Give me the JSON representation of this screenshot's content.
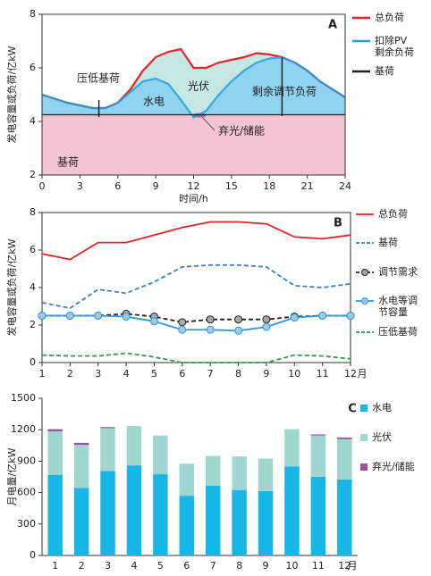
{
  "chart_data": [
    {
      "type": "area",
      "label": "A",
      "x_label": "时间/h",
      "y_label": "发电容量或负荷/亿kW",
      "x": [
        0,
        1,
        2,
        3,
        4,
        5,
        6,
        7,
        8,
        9,
        10,
        11,
        12,
        13,
        14,
        15,
        16,
        17,
        18,
        19,
        20,
        21,
        22,
        23,
        24
      ],
      "series": [
        {
          "name": "总负荷",
          "color": "#e2242a",
          "values": [
            5.0,
            4.85,
            4.7,
            4.6,
            4.5,
            4.5,
            4.7,
            5.2,
            5.9,
            6.4,
            6.6,
            6.7,
            6.0,
            6.0,
            6.2,
            6.3,
            6.4,
            6.55,
            6.5,
            6.4,
            6.2,
            5.9,
            5.5,
            5.2,
            4.9
          ]
        },
        {
          "name": "扣除PV剩余负荷",
          "color": "#1ba1e2",
          "fill": "#8fd3f0",
          "values": [
            5.0,
            4.85,
            4.7,
            4.6,
            4.5,
            4.5,
            4.7,
            5.1,
            5.5,
            5.6,
            5.4,
            4.8,
            4.15,
            4.4,
            5.0,
            5.5,
            5.9,
            6.2,
            6.35,
            6.4,
            6.2,
            5.9,
            5.5,
            5.2,
            4.9
          ]
        },
        {
          "name": "基荷",
          "color": "#222222",
          "fill": "#f2c4d3",
          "values": [
            4.25,
            4.25,
            4.25,
            4.25,
            4.25,
            4.25,
            4.25,
            4.25,
            4.25,
            4.25,
            4.25,
            4.25,
            4.25,
            4.25,
            4.25,
            4.25,
            4.25,
            4.25,
            4.25,
            4.25,
            4.25,
            4.25,
            4.25,
            4.25,
            4.25
          ]
        }
      ],
      "top_fill": "#c6e6e2",
      "annotations": [
        "压低基荷",
        "水电",
        "光伏",
        "剩余调节负荷",
        "弃光/储能",
        "基荷"
      ],
      "xlim": [
        0,
        24
      ],
      "xticks": [
        0,
        3,
        6,
        9,
        12,
        15,
        18,
        21,
        24
      ],
      "ylim": [
        2,
        8
      ],
      "yticks": [
        2,
        4,
        6,
        8
      ]
    },
    {
      "type": "line",
      "label": "B",
      "x_label": "月",
      "y_label": "发电容量或负荷/亿kW",
      "x": [
        1,
        2,
        3,
        4,
        5,
        6,
        7,
        8,
        9,
        10,
        11,
        12
      ],
      "series": [
        {
          "name": "总负荷",
          "color": "#e2242a",
          "dash": false,
          "values": [
            5.8,
            5.5,
            6.4,
            6.4,
            6.8,
            7.2,
            7.5,
            7.5,
            7.4,
            6.7,
            6.6,
            6.8
          ]
        },
        {
          "name": "基荷",
          "color": "#3a7fc8",
          "dash": true,
          "values": [
            3.2,
            2.9,
            3.9,
            3.7,
            4.3,
            5.1,
            5.2,
            5.2,
            5.1,
            4.1,
            4.0,
            4.2
          ]
        },
        {
          "name": "调节需求",
          "color": "#222222",
          "dash": true,
          "marker_color": "#a8a8a8",
          "values": [
            2.5,
            2.5,
            2.5,
            2.6,
            2.45,
            2.15,
            2.3,
            2.3,
            2.3,
            2.45,
            2.5,
            2.5
          ]
        },
        {
          "name": "水电等调节容量",
          "color": "#2a9ad8",
          "dash": false,
          "marker_color": "#9cc9e8",
          "values": [
            2.5,
            2.5,
            2.5,
            2.45,
            2.2,
            1.75,
            1.75,
            1.7,
            1.9,
            2.4,
            2.5,
            2.5
          ]
        },
        {
          "name": "压低基荷",
          "color": "#2e9e3e",
          "dash": true,
          "values": [
            0.4,
            0.35,
            0.35,
            0.5,
            0.3,
            0.0,
            0.0,
            0.0,
            0.0,
            0.4,
            0.35,
            0.2
          ]
        }
      ],
      "xlim": [
        1,
        12
      ],
      "xticks": [
        1,
        2,
        3,
        4,
        5,
        6,
        7,
        8,
        9,
        10,
        11,
        12
      ],
      "ylim": [
        0,
        8
      ],
      "yticks": [
        0,
        2,
        4,
        6,
        8
      ]
    },
    {
      "type": "stacked-bar",
      "label": "C",
      "x_label": "月",
      "y_label": "月电量/亿kW",
      "categories": [
        "1",
        "2",
        "3",
        "4",
        "5",
        "6",
        "7",
        "8",
        "9",
        "10",
        "11",
        "12"
      ],
      "series": [
        {
          "name": "水电",
          "color": "#17b6e6",
          "values": [
            770,
            645,
            805,
            860,
            775,
            570,
            665,
            625,
            615,
            850,
            750,
            725
          ]
        },
        {
          "name": "光伏",
          "color": "#9fd6cf",
          "values": [
            415,
            410,
            410,
            375,
            370,
            305,
            285,
            320,
            310,
            355,
            395,
            385
          ]
        },
        {
          "name": "弃光/储能",
          "color": "#9b4fa0",
          "values": [
            20,
            20,
            10,
            0,
            0,
            0,
            0,
            0,
            0,
            0,
            10,
            15
          ]
        }
      ],
      "ylim": [
        0,
        1500
      ],
      "yticks": [
        0,
        300,
        600,
        900,
        1200,
        1500
      ]
    }
  ]
}
